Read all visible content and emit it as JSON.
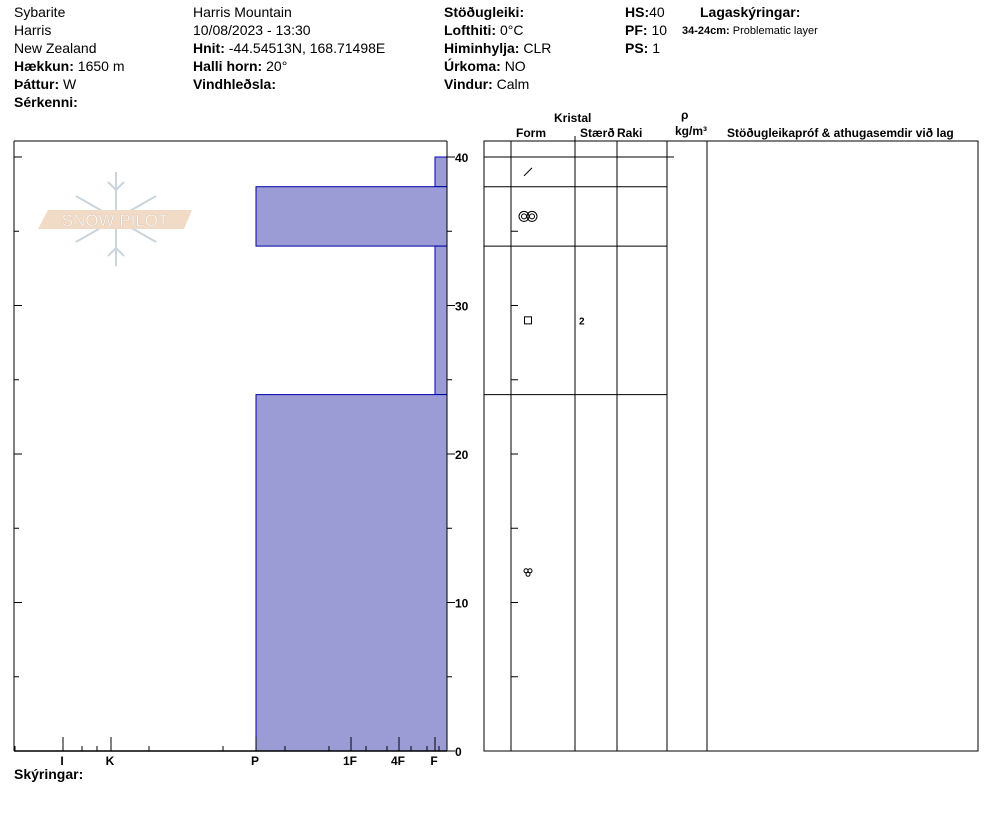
{
  "header": {
    "observer": "Sybarite",
    "location": "Harris",
    "country": "New Zealand",
    "elevation_label": "Hækkun:",
    "elevation": "1650 m",
    "aspect_label": "Þáttur:",
    "aspect": "W",
    "features_label": "Sérkenni:",
    "site": "Harris Mountain",
    "datetime": "10/08/2023 - 13:30",
    "coords_label": "Hnit:",
    "coords": "-44.54513N, 168.71498E",
    "slope_label": "Halli horn:",
    "slope": "20°",
    "wind_loading_label": "Vindhleðsla:",
    "stability_label": "Stöðugleiki:",
    "air_temp_label": "Lofthiti:",
    "air_temp": "0°C",
    "sky_label": "Himinhylja:",
    "sky": "CLR",
    "precip_label": "Úrkoma:",
    "precip": "NO",
    "wind_label": "Vindur:",
    "wind": "Calm",
    "hs_label": "HS:",
    "hs": "40",
    "pf_label": "PF:",
    "pf": "10",
    "ps_label": "PS:",
    "ps": "1",
    "layer_notes_label": "Lagaskýringar:",
    "layer_note_range": "34-24cm:",
    "layer_note_text": "Problematic layer"
  },
  "table_headers": {
    "crystal": "Kristal",
    "form": "Form",
    "size": "Stærð",
    "moisture": "Raki",
    "rho": "ρ",
    "density_unit": "kg/m³",
    "comments": "Stöðugleikapróf & athugasemdir við lag"
  },
  "footer": {
    "notes_label": "Skýringar:"
  },
  "logo": {
    "text": "SNOW PILOT"
  },
  "colors": {
    "layer_fill": "#9b9bd6",
    "layer_stroke": "#0000aa",
    "logo_band": "#f0d8c0",
    "logo_flake": "#c5d0d8"
  },
  "chart_data": {
    "type": "bar",
    "depth_axis": {
      "range": [
        0,
        40
      ],
      "ticks": [
        "0",
        "10",
        "20",
        "30",
        "40"
      ]
    },
    "hardness_axis": {
      "ticks": [
        "I",
        "K",
        "P",
        "1F",
        "4F",
        "F"
      ]
    },
    "layers": [
      {
        "top": 40,
        "bottom": 38,
        "hardness": "F"
      },
      {
        "top": 38,
        "bottom": 34,
        "hardness": "P"
      },
      {
        "top": 34,
        "bottom": 24,
        "hardness": "F"
      },
      {
        "top": 24,
        "bottom": 0,
        "hardness": "P"
      }
    ],
    "grains": [
      {
        "depth": 39,
        "form": "decomposing-fragments",
        "size": ""
      },
      {
        "depth": 36,
        "form": "rounded-polycrystals",
        "size": ""
      },
      {
        "depth": 29,
        "form": "faceted",
        "size": "2"
      },
      {
        "depth": 12,
        "form": "melt-freeze-clusters",
        "size": ""
      }
    ]
  }
}
